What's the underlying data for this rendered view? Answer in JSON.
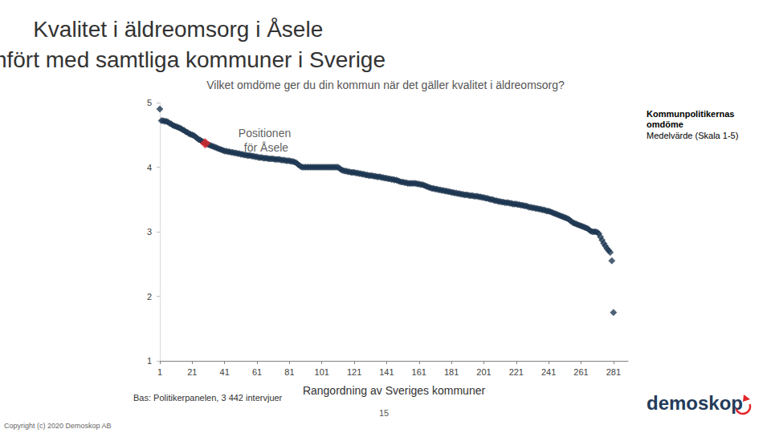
{
  "chart_data": {
    "type": "scatter",
    "title": "Kvalitet i äldreomsorg i Åsele\njämfört med samtliga kommuner i Sverige",
    "subtitle": "Vilket omdöme ger du din kommun när det gäller kvalitet i äldreomsorg?",
    "x_label": "Rangordning av Sveriges kommuner",
    "legend_note": "Medelvärde (Skala 1-5)",
    "footer": {
      "base": "Bas: Politikerpanelen, 3 442 intervjuer",
      "page": "15",
      "copyright": "Copyright (c) 2020 Demoskop AB",
      "logo": "demoskop"
    },
    "xlim": [
      1,
      290
    ],
    "xticks": [
      1,
      21,
      41,
      61,
      81,
      101,
      121,
      141,
      161,
      181,
      201,
      221,
      241,
      261,
      281
    ],
    "ylim": [
      1,
      5
    ],
    "yticks": [
      1,
      2,
      3,
      4,
      5
    ],
    "grid": false,
    "series": [
      {
        "name": "Kommunpolitikernas omdöme",
        "color": "#1f3b57",
        "marker": "diamond",
        "x": [
          1,
          2,
          3,
          4,
          5,
          6,
          7,
          8,
          9,
          10,
          11,
          12,
          13,
          14,
          15,
          16,
          17,
          18,
          19,
          20,
          21,
          22,
          23,
          24,
          25,
          26,
          27,
          28,
          29,
          30,
          31,
          32,
          33,
          34,
          35,
          36,
          37,
          38,
          39,
          40,
          41,
          42,
          43,
          44,
          45,
          46,
          47,
          48,
          49,
          50,
          51,
          52,
          53,
          54,
          55,
          56,
          57,
          58,
          59,
          60,
          61,
          62,
          63,
          64,
          65,
          66,
          67,
          68,
          69,
          70,
          71,
          72,
          73,
          74,
          75,
          76,
          77,
          78,
          79,
          80,
          81,
          82,
          83,
          84,
          85,
          86,
          87,
          88,
          89,
          90,
          91,
          92,
          93,
          94,
          95,
          96,
          97,
          98,
          99,
          100,
          101,
          102,
          103,
          104,
          105,
          106,
          107,
          108,
          109,
          110,
          111,
          112,
          113,
          114,
          115,
          116,
          117,
          118,
          119,
          120,
          121,
          122,
          123,
          124,
          125,
          126,
          127,
          128,
          129,
          130,
          131,
          132,
          133,
          134,
          135,
          136,
          137,
          138,
          139,
          140,
          141,
          142,
          143,
          144,
          145,
          146,
          147,
          148,
          149,
          150,
          151,
          152,
          153,
          154,
          155,
          156,
          157,
          158,
          159,
          160,
          161,
          162,
          163,
          164,
          165,
          166,
          167,
          168,
          169,
          170,
          171,
          172,
          173,
          174,
          175,
          176,
          177,
          178,
          179,
          180,
          181,
          182,
          183,
          184,
          185,
          186,
          187,
          188,
          189,
          190,
          191,
          192,
          193,
          194,
          195,
          196,
          197,
          198,
          199,
          200,
          201,
          202,
          203,
          204,
          205,
          206,
          207,
          208,
          209,
          210,
          211,
          212,
          213,
          214,
          215,
          216,
          217,
          218,
          219,
          220,
          221,
          222,
          223,
          224,
          225,
          226,
          227,
          228,
          229,
          230,
          231,
          232,
          233,
          234,
          235,
          236,
          237,
          238,
          239,
          240,
          241,
          242,
          243,
          244,
          245,
          246,
          247,
          248,
          249,
          250,
          251,
          252,
          253,
          254,
          255,
          256,
          257,
          258,
          259,
          260,
          261,
          262,
          263,
          264,
          265,
          266,
          267,
          268,
          269,
          270,
          271,
          272,
          273,
          274,
          275,
          276,
          277,
          278,
          279,
          280,
          281
        ],
        "values": [
          4.9,
          4.72,
          4.72,
          4.71,
          4.71,
          4.7,
          4.68,
          4.67,
          4.65,
          4.64,
          4.63,
          4.62,
          4.61,
          4.6,
          4.58,
          4.57,
          4.55,
          4.54,
          4.52,
          4.51,
          4.5,
          4.49,
          4.47,
          4.45,
          4.43,
          4.42,
          4.4,
          4.39,
          4.37,
          4.36,
          4.35,
          4.34,
          4.33,
          4.32,
          4.31,
          4.3,
          4.29,
          4.28,
          4.27,
          4.26,
          4.25,
          4.25,
          4.24,
          4.24,
          4.23,
          4.23,
          4.22,
          4.22,
          4.21,
          4.21,
          4.2,
          4.2,
          4.19,
          4.19,
          4.18,
          4.18,
          4.18,
          4.17,
          4.17,
          4.16,
          4.16,
          4.15,
          4.15,
          4.15,
          4.14,
          4.14,
          4.14,
          4.13,
          4.13,
          4.13,
          4.13,
          4.12,
          4.12,
          4.12,
          4.12,
          4.11,
          4.11,
          4.11,
          4.1,
          4.1,
          4.1,
          4.09,
          4.09,
          4.08,
          4.07,
          4.05,
          4.03,
          4.01,
          4.0,
          4.0,
          4.0,
          4.0,
          4.0,
          4.0,
          4.0,
          4.0,
          4.0,
          4.0,
          4.0,
          4.0,
          4.0,
          4.0,
          4.0,
          4.0,
          4.0,
          4.0,
          4.0,
          4.0,
          4.0,
          4.0,
          4.0,
          3.98,
          3.96,
          3.95,
          3.94,
          3.94,
          3.93,
          3.93,
          3.92,
          3.92,
          3.92,
          3.91,
          3.91,
          3.9,
          3.9,
          3.89,
          3.89,
          3.88,
          3.88,
          3.87,
          3.87,
          3.87,
          3.86,
          3.86,
          3.85,
          3.85,
          3.85,
          3.84,
          3.84,
          3.83,
          3.83,
          3.82,
          3.82,
          3.81,
          3.81,
          3.8,
          3.8,
          3.79,
          3.78,
          3.77,
          3.77,
          3.76,
          3.76,
          3.75,
          3.75,
          3.75,
          3.75,
          3.75,
          3.75,
          3.74,
          3.74,
          3.73,
          3.73,
          3.72,
          3.71,
          3.7,
          3.69,
          3.68,
          3.67,
          3.67,
          3.66,
          3.66,
          3.65,
          3.65,
          3.64,
          3.64,
          3.63,
          3.63,
          3.62,
          3.62,
          3.61,
          3.61,
          3.6,
          3.6,
          3.59,
          3.59,
          3.58,
          3.58,
          3.57,
          3.57,
          3.57,
          3.56,
          3.56,
          3.56,
          3.55,
          3.55,
          3.55,
          3.54,
          3.54,
          3.53,
          3.53,
          3.52,
          3.52,
          3.51,
          3.5,
          3.5,
          3.49,
          3.48,
          3.48,
          3.47,
          3.47,
          3.46,
          3.46,
          3.45,
          3.45,
          3.45,
          3.44,
          3.44,
          3.43,
          3.43,
          3.43,
          3.42,
          3.42,
          3.41,
          3.41,
          3.4,
          3.4,
          3.39,
          3.38,
          3.38,
          3.37,
          3.37,
          3.36,
          3.36,
          3.35,
          3.35,
          3.34,
          3.34,
          3.33,
          3.32,
          3.32,
          3.31,
          3.3,
          3.29,
          3.28,
          3.27,
          3.26,
          3.25,
          3.24,
          3.23,
          3.22,
          3.21,
          3.2,
          3.18,
          3.16,
          3.14,
          3.13,
          3.12,
          3.11,
          3.1,
          3.09,
          3.08,
          3.07,
          3.06,
          3.05,
          3.03,
          3.01,
          3.0,
          3.0,
          3.0,
          2.99,
          2.97,
          2.92,
          2.87,
          2.82,
          2.78,
          2.74,
          2.71,
          2.68,
          2.55,
          1.75
        ]
      },
      {
        "name": "Positionen för Åsele",
        "color": "#e3262b",
        "marker": "diamond",
        "x": [
          29
        ],
        "values": [
          4.37
        ]
      }
    ]
  }
}
